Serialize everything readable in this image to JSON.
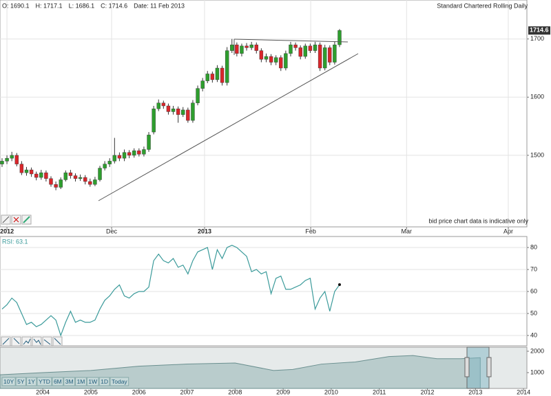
{
  "header": {
    "items": [
      "O: 1690.1",
      "H: 1717.1",
      "L: 1686.1",
      "C: 1714.6",
      "Date: 11 Feb 2013"
    ]
  },
  "range_buttons": [
    "10Y",
    "5Y",
    "1Y",
    "YTD",
    "6M",
    "3M",
    "1M",
    "1W",
    "1D",
    "Today"
  ],
  "chart_data": [
    {
      "type": "candlestick",
      "title": "Standard Chartered Rolling Daily",
      "note": "bid price chart data is indicative only",
      "up_color": "#2e9e2e",
      "down_color": "#d9262b",
      "grid": true,
      "open": [
        1485,
        1490,
        1495,
        1500,
        1485,
        1470,
        1475,
        1468,
        1462,
        1470,
        1460,
        1450,
        1445,
        1458,
        1470,
        1465,
        1460,
        1462,
        1455,
        1450,
        1458,
        1478,
        1485,
        1490,
        1500,
        1495,
        1505,
        1500,
        1508,
        1502,
        1510,
        1540,
        1580,
        1590,
        1585,
        1575,
        1580,
        1570,
        1578,
        1560,
        1590,
        1615,
        1628,
        1640,
        1630,
        1650,
        1625,
        1680,
        1690,
        1675,
        1688,
        1685,
        1690,
        1680,
        1665,
        1670,
        1660,
        1668,
        1650,
        1675,
        1690,
        1685,
        1670,
        1688,
        1680,
        1690,
        1650,
        1685,
        1660,
        1690.1
      ],
      "high": [
        1495,
        1500,
        1506,
        1504,
        1490,
        1480,
        1479,
        1472,
        1475,
        1474,
        1464,
        1455,
        1462,
        1474,
        1475,
        1469,
        1467,
        1466,
        1460,
        1463,
        1482,
        1490,
        1495,
        1530,
        1505,
        1510,
        1509,
        1512,
        1512,
        1515,
        1540,
        1585,
        1596,
        1594,
        1589,
        1585,
        1584,
        1583,
        1582,
        1595,
        1620,
        1633,
        1645,
        1644,
        1655,
        1654,
        1686,
        1700,
        1694,
        1692,
        1693,
        1695,
        1694,
        1684,
        1675,
        1674,
        1672,
        1672,
        1680,
        1695,
        1694,
        1689,
        1692,
        1692,
        1695,
        1694,
        1690,
        1689,
        1696,
        1717.1
      ],
      "low": [
        1480,
        1485,
        1490,
        1481,
        1466,
        1465,
        1463,
        1457,
        1458,
        1455,
        1446,
        1440,
        1442,
        1455,
        1460,
        1455,
        1456,
        1450,
        1446,
        1447,
        1455,
        1474,
        1480,
        1486,
        1490,
        1490,
        1495,
        1496,
        1498,
        1498,
        1506,
        1536,
        1576,
        1580,
        1570,
        1570,
        1556,
        1566,
        1556,
        1556,
        1586,
        1610,
        1624,
        1625,
        1626,
        1620,
        1620,
        1676,
        1670,
        1670,
        1680,
        1681,
        1675,
        1660,
        1660,
        1655,
        1655,
        1645,
        1646,
        1670,
        1680,
        1665,
        1666,
        1676,
        1676,
        1645,
        1646,
        1655,
        1656,
        1686.1
      ],
      "close": [
        1490,
        1495,
        1500,
        1485,
        1470,
        1475,
        1468,
        1462,
        1470,
        1460,
        1450,
        1445,
        1458,
        1470,
        1465,
        1460,
        1462,
        1455,
        1450,
        1458,
        1478,
        1485,
        1490,
        1500,
        1495,
        1505,
        1500,
        1508,
        1502,
        1510,
        1535,
        1580,
        1590,
        1585,
        1575,
        1580,
        1570,
        1578,
        1560,
        1590,
        1615,
        1628,
        1640,
        1630,
        1650,
        1625,
        1680,
        1690,
        1675,
        1688,
        1685,
        1690,
        1680,
        1665,
        1670,
        1660,
        1668,
        1650,
        1675,
        1690,
        1685,
        1670,
        1688,
        1680,
        1690,
        1650,
        1685,
        1660,
        1690,
        1714.6
      ],
      "xlim": [
        -0.42,
        107.3
      ],
      "xticks": [
        {
          "value": 1,
          "label": "2012"
        },
        {
          "value": 22.4,
          "label": "Dec"
        },
        {
          "value": 41.4,
          "label": "2013"
        },
        {
          "value": 63.1,
          "label": "Feb"
        },
        {
          "value": 82.7,
          "label": "Mar"
        },
        {
          "value": 103.5,
          "label": "Apr"
        }
      ],
      "ylim": [
        1377,
        1767
      ],
      "yticks": [
        1500,
        1600,
        1700
      ]
    },
    {
      "type": "line",
      "title": "RSI: 63.1",
      "color": "#3a9a9a",
      "values": [
        52,
        54,
        57,
        55,
        50,
        45,
        46,
        44,
        45,
        47,
        49,
        47,
        40,
        46,
        51,
        46,
        47,
        46,
        46,
        47,
        52,
        56,
        58,
        61,
        63,
        58,
        57,
        59,
        60,
        60,
        62,
        74,
        77,
        74,
        73,
        75,
        71,
        72,
        68,
        74,
        78,
        79,
        80,
        70,
        79,
        75,
        80,
        81,
        80,
        78,
        76,
        69,
        70,
        68,
        69,
        59,
        66,
        67,
        61,
        61,
        62,
        63,
        65,
        66,
        52,
        57,
        60,
        51,
        60,
        63.1
      ],
      "xlim": [
        -0.42,
        107.3
      ],
      "ylim": [
        35.3,
        85
      ],
      "yticks": [
        40,
        50,
        60,
        70,
        80
      ],
      "grid": true
    },
    {
      "type": "area",
      "color": "#b9cccc",
      "x": [
        2003.11,
        2004,
        2005,
        2006,
        2007,
        2008,
        2008.8,
        2009.2,
        2009.8,
        2010.5,
        2011.2,
        2011.7,
        2012.2,
        2012.7,
        2013.1
      ],
      "values": [
        900,
        1000,
        1100,
        1300,
        1400,
        1450,
        1100,
        1150,
        1400,
        1500,
        1750,
        1800,
        1650,
        1650,
        1700
      ],
      "xlim": [
        2003.11,
        2014.07
      ],
      "xticks": [
        2004,
        2005,
        2006,
        2007,
        2008,
        2009,
        2010,
        2011,
        2012,
        2013,
        2014
      ],
      "ylim": [
        260,
        2190
      ],
      "yticks": [
        1000,
        2000
      ]
    }
  ]
}
